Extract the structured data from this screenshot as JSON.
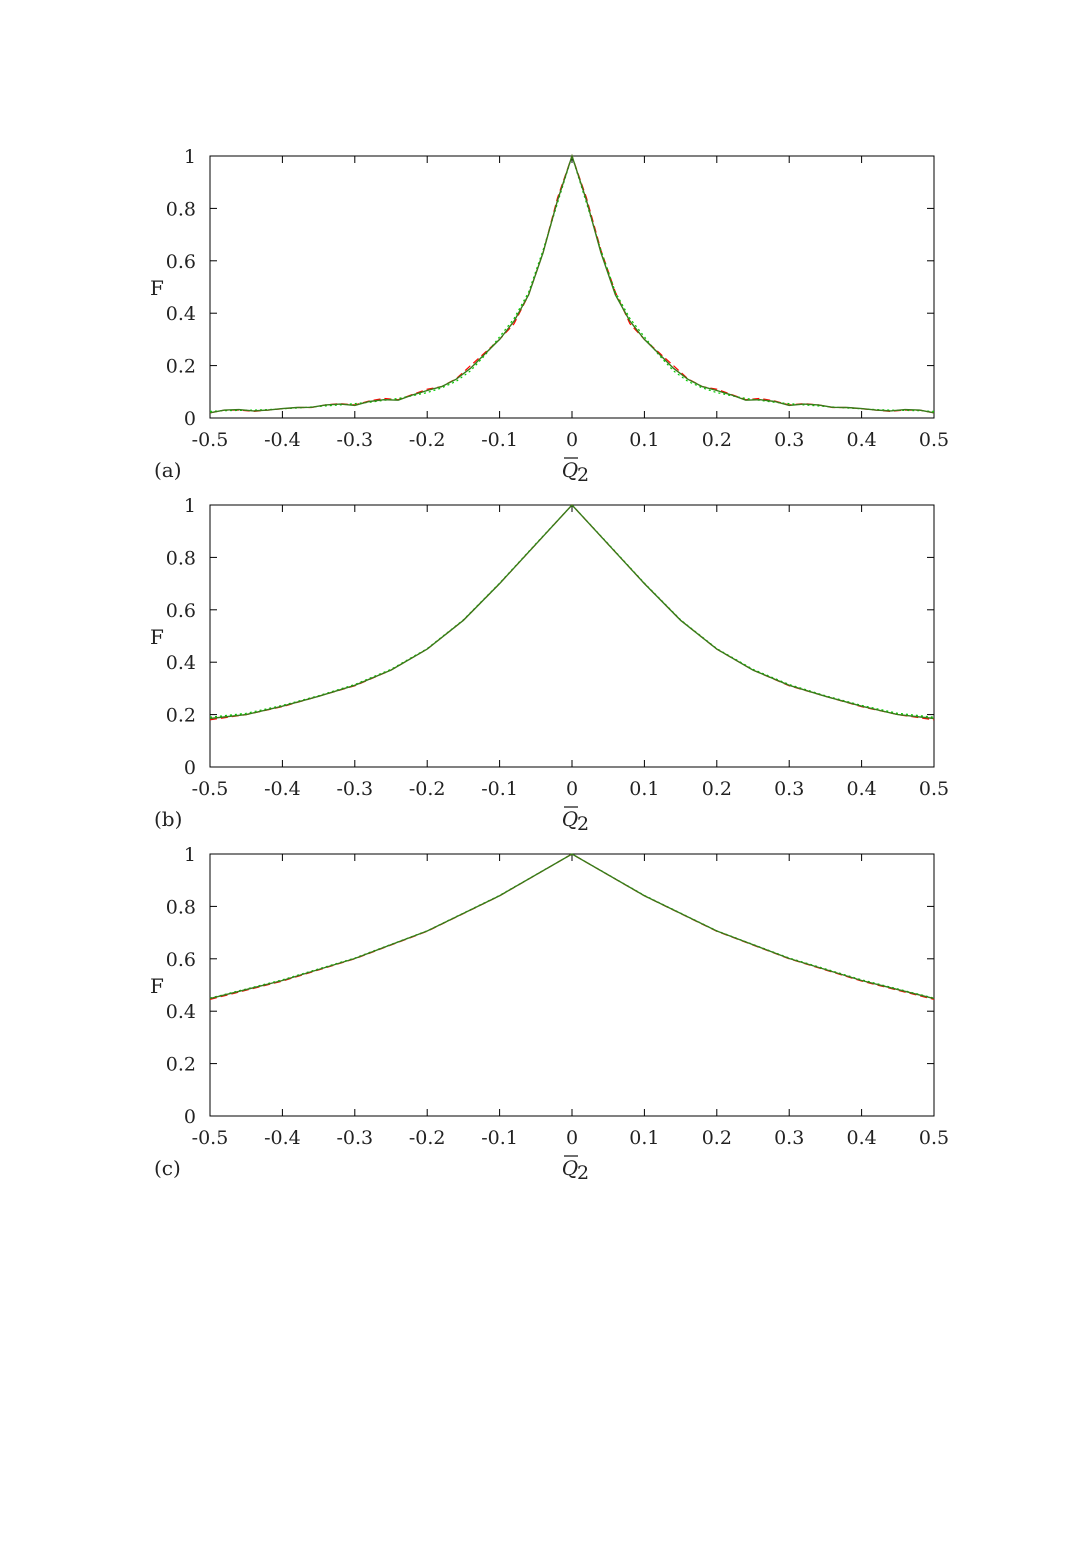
{
  "colors": {
    "series_dashed": "#ff0000",
    "series_dotted": "#00cc00",
    "series_solid": "#3a7a1a",
    "frame": "#000000"
  },
  "chart_data": [
    {
      "type": "line",
      "panel_label": "(a)",
      "ylabel": "F",
      "xlabel_main": "Q",
      "xlabel_subscript": "2",
      "xlim": [
        -0.5,
        0.5
      ],
      "ylim": [
        0,
        1
      ],
      "xticks": [
        "-0.5",
        "-0.4",
        "-0.3",
        "-0.2",
        "-0.1",
        "0",
        "0.1",
        "0.2",
        "0.3",
        "0.4",
        "0.5"
      ],
      "yticks": [
        "0",
        "0.2",
        "0.4",
        "0.6",
        "0.8",
        "1"
      ],
      "grid": false,
      "x": [
        -0.5,
        -0.48,
        -0.46,
        -0.44,
        -0.42,
        -0.4,
        -0.38,
        -0.36,
        -0.34,
        -0.32,
        -0.3,
        -0.28,
        -0.26,
        -0.24,
        -0.22,
        -0.2,
        -0.18,
        -0.16,
        -0.14,
        -0.12,
        -0.1,
        -0.08,
        -0.06,
        -0.04,
        -0.02,
        0,
        0.02,
        0.04,
        0.06,
        0.08,
        0.1,
        0.12,
        0.14,
        0.16,
        0.18,
        0.2,
        0.22,
        0.24,
        0.26,
        0.28,
        0.3,
        0.32,
        0.34,
        0.36,
        0.38,
        0.4,
        0.42,
        0.44,
        0.46,
        0.48,
        0.5
      ],
      "series": [
        {
          "style": "dashed",
          "values": [
            0.02,
            0.03,
            0.03,
            0.025,
            0.03,
            0.035,
            0.04,
            0.04,
            0.05,
            0.055,
            0.05,
            0.065,
            0.075,
            0.07,
            0.09,
            0.11,
            0.12,
            0.15,
            0.2,
            0.25,
            0.3,
            0.36,
            0.47,
            0.63,
            0.84,
            1.0,
            0.84,
            0.64,
            0.48,
            0.36,
            0.3,
            0.25,
            0.2,
            0.15,
            0.12,
            0.11,
            0.09,
            0.07,
            0.075,
            0.065,
            0.05,
            0.055,
            0.05,
            0.04,
            0.04,
            0.035,
            0.03,
            0.025,
            0.03,
            0.03,
            0.02
          ]
        },
        {
          "style": "dotted",
          "values": [
            0.025,
            0.028,
            0.029,
            0.03,
            0.032,
            0.035,
            0.038,
            0.042,
            0.046,
            0.05,
            0.055,
            0.06,
            0.067,
            0.075,
            0.085,
            0.097,
            0.115,
            0.14,
            0.18,
            0.24,
            0.31,
            0.38,
            0.48,
            0.64,
            0.82,
            1.0,
            0.82,
            0.64,
            0.48,
            0.38,
            0.31,
            0.24,
            0.18,
            0.14,
            0.115,
            0.097,
            0.085,
            0.075,
            0.067,
            0.06,
            0.055,
            0.05,
            0.046,
            0.042,
            0.038,
            0.035,
            0.032,
            0.03,
            0.029,
            0.028,
            0.025
          ]
        },
        {
          "style": "solid",
          "values": [
            0.02,
            0.03,
            0.032,
            0.027,
            0.03,
            0.036,
            0.04,
            0.041,
            0.05,
            0.053,
            0.048,
            0.063,
            0.07,
            0.068,
            0.088,
            0.105,
            0.12,
            0.148,
            0.19,
            0.245,
            0.3,
            0.37,
            0.47,
            0.63,
            0.83,
            1.0,
            0.83,
            0.63,
            0.47,
            0.37,
            0.3,
            0.245,
            0.19,
            0.148,
            0.12,
            0.105,
            0.088,
            0.068,
            0.07,
            0.063,
            0.048,
            0.053,
            0.05,
            0.041,
            0.04,
            0.036,
            0.03,
            0.027,
            0.032,
            0.03,
            0.02
          ]
        }
      ]
    },
    {
      "type": "line",
      "panel_label": "(b)",
      "ylabel": "F",
      "xlabel_main": "Q",
      "xlabel_subscript": "2",
      "xlim": [
        -0.5,
        0.5
      ],
      "ylim": [
        0,
        1
      ],
      "xticks": [
        "-0.5",
        "-0.4",
        "-0.3",
        "-0.2",
        "-0.1",
        "0",
        "0.1",
        "0.2",
        "0.3",
        "0.4",
        "0.5"
      ],
      "yticks": [
        "0",
        "0.2",
        "0.4",
        "0.6",
        "0.8",
        "1"
      ],
      "grid": false,
      "x": [
        -0.5,
        -0.45,
        -0.4,
        -0.35,
        -0.3,
        -0.25,
        -0.2,
        -0.15,
        -0.1,
        -0.05,
        0,
        0.05,
        0.1,
        0.15,
        0.2,
        0.25,
        0.3,
        0.35,
        0.4,
        0.45,
        0.5
      ],
      "series": [
        {
          "style": "dashed",
          "values": [
            0.18,
            0.2,
            0.23,
            0.27,
            0.31,
            0.37,
            0.45,
            0.56,
            0.7,
            0.85,
            1.0,
            0.85,
            0.7,
            0.56,
            0.45,
            0.37,
            0.31,
            0.27,
            0.23,
            0.2,
            0.18
          ]
        },
        {
          "style": "dotted",
          "values": [
            0.19,
            0.205,
            0.235,
            0.272,
            0.315,
            0.373,
            0.452,
            0.562,
            0.702,
            0.852,
            1.0,
            0.852,
            0.702,
            0.562,
            0.452,
            0.373,
            0.315,
            0.272,
            0.235,
            0.205,
            0.19
          ]
        },
        {
          "style": "solid",
          "values": [
            0.185,
            0.2,
            0.232,
            0.27,
            0.312,
            0.37,
            0.45,
            0.56,
            0.7,
            0.85,
            1.0,
            0.85,
            0.7,
            0.56,
            0.45,
            0.37,
            0.312,
            0.27,
            0.232,
            0.2,
            0.185
          ]
        }
      ]
    },
    {
      "type": "line",
      "panel_label": "(c)",
      "ylabel": "F",
      "xlabel_main": "Q",
      "xlabel_subscript": "2",
      "xlim": [
        -0.5,
        0.5
      ],
      "ylim": [
        0,
        1
      ],
      "xticks": [
        "-0.5",
        "-0.4",
        "-0.3",
        "-0.2",
        "-0.1",
        "0",
        "0.1",
        "0.2",
        "0.3",
        "0.4",
        "0.5"
      ],
      "yticks": [
        "0",
        "0.2",
        "0.4",
        "0.6",
        "0.8",
        "1"
      ],
      "grid": false,
      "x": [
        -0.5,
        -0.4,
        -0.3,
        -0.2,
        -0.1,
        0,
        0.1,
        0.2,
        0.3,
        0.4,
        0.5
      ],
      "series": [
        {
          "style": "dashed",
          "values": [
            0.445,
            0.515,
            0.6,
            0.705,
            0.84,
            1.0,
            0.84,
            0.705,
            0.6,
            0.515,
            0.445
          ]
        },
        {
          "style": "dotted",
          "values": [
            0.45,
            0.52,
            0.603,
            0.707,
            0.842,
            1.0,
            0.842,
            0.707,
            0.603,
            0.52,
            0.45
          ]
        },
        {
          "style": "solid",
          "values": [
            0.448,
            0.517,
            0.601,
            0.706,
            0.841,
            1.0,
            0.841,
            0.706,
            0.601,
            0.517,
            0.448
          ]
        }
      ]
    }
  ]
}
